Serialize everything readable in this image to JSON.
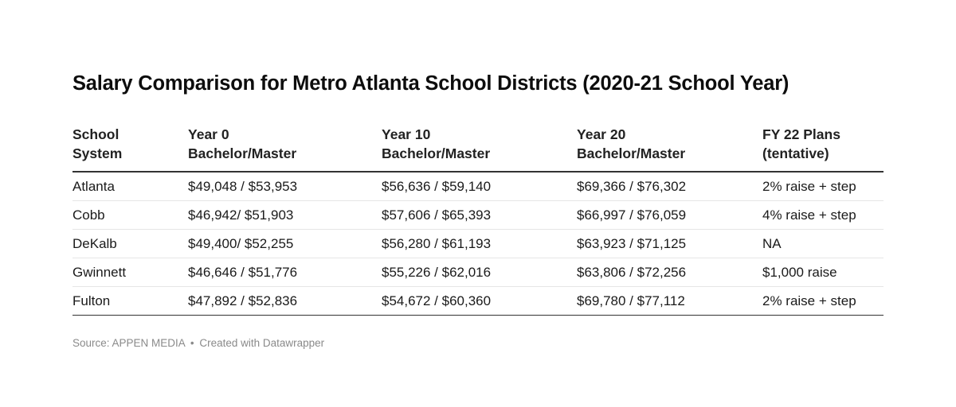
{
  "chart": {
    "title": "Salary Comparison for Metro Atlanta School Districts (2020-21 School Year)",
    "headers": [
      {
        "line1": "School",
        "line2": "System"
      },
      {
        "line1": "Year 0",
        "line2": "Bachelor/Master"
      },
      {
        "line1": "Year 10",
        "line2": "Bachelor/Master"
      },
      {
        "line1": "Year 20",
        "line2": "Bachelor/Master"
      },
      {
        "line1": "FY 22 Plans",
        "line2": "(tentative)"
      }
    ],
    "rows": [
      [
        "Atlanta",
        "$49,048 / $53,953",
        "$56,636 / $59,140",
        "$69,366 / $76,302",
        "2% raise + step"
      ],
      [
        "Cobb",
        "$46,942/ $51,903",
        "$57,606 / $65,393",
        "$66,997 / $76,059",
        "4% raise + step"
      ],
      [
        "DeKalb",
        "$49,400/ $52,255",
        "$56,280 / $61,193",
        "$63,923 / $71,125",
        "NA"
      ],
      [
        "Gwinnett",
        "$46,646 / $51,776",
        "$55,226 / $62,016",
        "$63,806 / $72,256",
        "$1,000 raise"
      ],
      [
        "Fulton",
        "$47,892 / $52,836",
        "$54,672 / $60,360",
        "$69,780 / $77,112",
        "2% raise + step"
      ]
    ],
    "footer": {
      "source": "Source: APPEN MEDIA",
      "separator": "•",
      "credit": "Created with Datawrapper"
    }
  },
  "chart_data": {
    "type": "table",
    "title": "Salary Comparison for Metro Atlanta School Districts (2020-21 School Year)",
    "columns": [
      "School System",
      "Year 0 Bachelor/Master",
      "Year 10 Bachelor/Master",
      "Year 20 Bachelor/Master",
      "FY 22 Plans (tentative)"
    ],
    "rows": [
      {
        "school_system": "Atlanta",
        "year0": {
          "bachelor": 49048,
          "master": 53953
        },
        "year10": {
          "bachelor": 56636,
          "master": 59140
        },
        "year20": {
          "bachelor": 69366,
          "master": 76302
        },
        "fy22_plans": "2% raise + step"
      },
      {
        "school_system": "Cobb",
        "year0": {
          "bachelor": 46942,
          "master": 51903
        },
        "year10": {
          "bachelor": 57606,
          "master": 65393
        },
        "year20": {
          "bachelor": 66997,
          "master": 76059
        },
        "fy22_plans": "4% raise + step"
      },
      {
        "school_system": "DeKalb",
        "year0": {
          "bachelor": 49400,
          "master": 52255
        },
        "year10": {
          "bachelor": 56280,
          "master": 61193
        },
        "year20": {
          "bachelor": 63923,
          "master": 71125
        },
        "fy22_plans": "NA"
      },
      {
        "school_system": "Gwinnett",
        "year0": {
          "bachelor": 46646,
          "master": 51776
        },
        "year10": {
          "bachelor": 55226,
          "master": 62016
        },
        "year20": {
          "bachelor": 63806,
          "master": 72256
        },
        "fy22_plans": "$1,000 raise"
      },
      {
        "school_system": "Fulton",
        "year0": {
          "bachelor": 47892,
          "master": 52836
        },
        "year10": {
          "bachelor": 54672,
          "master": 60360
        },
        "year20": {
          "bachelor": 69780,
          "master": 77112
        },
        "fy22_plans": "2% raise + step"
      }
    ],
    "source": "APPEN MEDIA",
    "credit": "Created with Datawrapper"
  }
}
